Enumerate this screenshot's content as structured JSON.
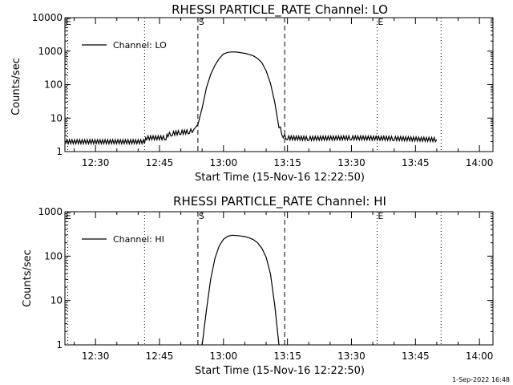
{
  "chart_data": [
    {
      "type": "line",
      "title": "RHESSI PARTICLE_RATE Channel: LO",
      "xlabel": "Start Time (15-Nov-16 12:22:50)",
      "ylabel": "Counts/sec",
      "y_scale": "log",
      "ylim": [
        1,
        10000
      ],
      "xlim": [
        "12:22:50",
        "14:03:10"
      ],
      "y_ticks": [
        "1",
        "10",
        "100",
        "1000",
        "10000"
      ],
      "x_ticks": [
        "12:30",
        "12:45",
        "13:00",
        "13:15",
        "13:30",
        "13:45",
        "14:00"
      ],
      "legend": {
        "position": "top-left",
        "entries": [
          "Channel: LO"
        ]
      },
      "markers": [
        {
          "label": "",
          "time": "12:23:30",
          "style": "dotted"
        },
        {
          "label": "",
          "time": "12:41:30",
          "style": "dotted"
        },
        {
          "label": "S",
          "time": "12:54:00",
          "style": "dashed"
        },
        {
          "label": "",
          "time": "13:14:20",
          "style": "dashed"
        },
        {
          "label": "E",
          "time": "13:36:00",
          "style": "dotted"
        },
        {
          "label": "",
          "time": "13:51:00",
          "style": "dotted"
        }
      ],
      "corner_marker": "E",
      "series": [
        {
          "name": "Channel: LO",
          "x": [
            "12:23:00",
            "12:41:30",
            "12:42:00",
            "12:46:30",
            "12:47:00",
            "12:48:00",
            "12:50:00",
            "12:52:00",
            "12:53:00",
            "12:54:00",
            "12:55:00",
            "12:56:00",
            "12:57:00",
            "12:58:00",
            "12:59:00",
            "13:00:00",
            "13:01:00",
            "13:02:00",
            "13:03:00",
            "13:04:00",
            "13:05:00",
            "13:06:00",
            "13:07:00",
            "13:08:00",
            "13:09:00",
            "13:10:00",
            "13:11:00",
            "13:12:00",
            "13:13:00",
            "13:14:00",
            "13:15:00",
            "13:20:00",
            "13:30:00",
            "13:40:00",
            "13:50:00"
          ],
          "y": [
            2.0,
            2.0,
            2.6,
            2.6,
            3.2,
            3.5,
            3.8,
            4.0,
            4.5,
            6.5,
            20,
            80,
            200,
            380,
            600,
            820,
            920,
            950,
            940,
            900,
            860,
            800,
            720,
            600,
            450,
            260,
            110,
            30,
            6,
            3.0,
            2.6,
            2.5,
            2.6,
            2.5,
            2.3
          ],
          "noise": "low-level fluctuations between ~2 and ~3 counts/sec outside the event"
        }
      ]
    },
    {
      "type": "line",
      "title": "RHESSI PARTICLE_RATE Channel: HI",
      "xlabel": "Start Time (15-Nov-16 12:22:50)",
      "ylabel": "Counts/sec",
      "y_scale": "log",
      "ylim": [
        1,
        1000
      ],
      "xlim": [
        "12:22:50",
        "14:03:10"
      ],
      "y_ticks": [
        "1",
        "10",
        "100",
        "1000"
      ],
      "x_ticks": [
        "12:30",
        "12:45",
        "13:00",
        "13:15",
        "13:30",
        "13:45",
        "14:00"
      ],
      "legend": {
        "position": "top-left",
        "entries": [
          "Channel: HI"
        ]
      },
      "markers": [
        {
          "label": "",
          "time": "12:23:30",
          "style": "dotted"
        },
        {
          "label": "",
          "time": "12:41:30",
          "style": "dotted"
        },
        {
          "label": "S",
          "time": "12:54:00",
          "style": "dashed"
        },
        {
          "label": "",
          "time": "13:14:20",
          "style": "dashed"
        },
        {
          "label": "E",
          "time": "13:36:00",
          "style": "dotted"
        },
        {
          "label": "",
          "time": "13:51:00",
          "style": "dotted"
        }
      ],
      "corner_marker": "E",
      "series": [
        {
          "name": "Channel: HI",
          "x": [
            "12:55:00",
            "12:56:00",
            "12:57:00",
            "12:58:00",
            "12:59:00",
            "13:00:00",
            "13:01:00",
            "13:02:00",
            "13:03:00",
            "13:04:00",
            "13:05:00",
            "13:06:00",
            "13:07:00",
            "13:08:00",
            "13:09:00",
            "13:10:00",
            "13:11:00",
            "13:12:00",
            "13:13:00"
          ],
          "y": [
            1.0,
            6,
            30,
            90,
            170,
            240,
            280,
            295,
            290,
            285,
            275,
            260,
            235,
            200,
            150,
            95,
            40,
            8,
            1.0
          ]
        }
      ]
    }
  ],
  "footer": {
    "date_stamp": "1-Sep-2022 16:48"
  }
}
